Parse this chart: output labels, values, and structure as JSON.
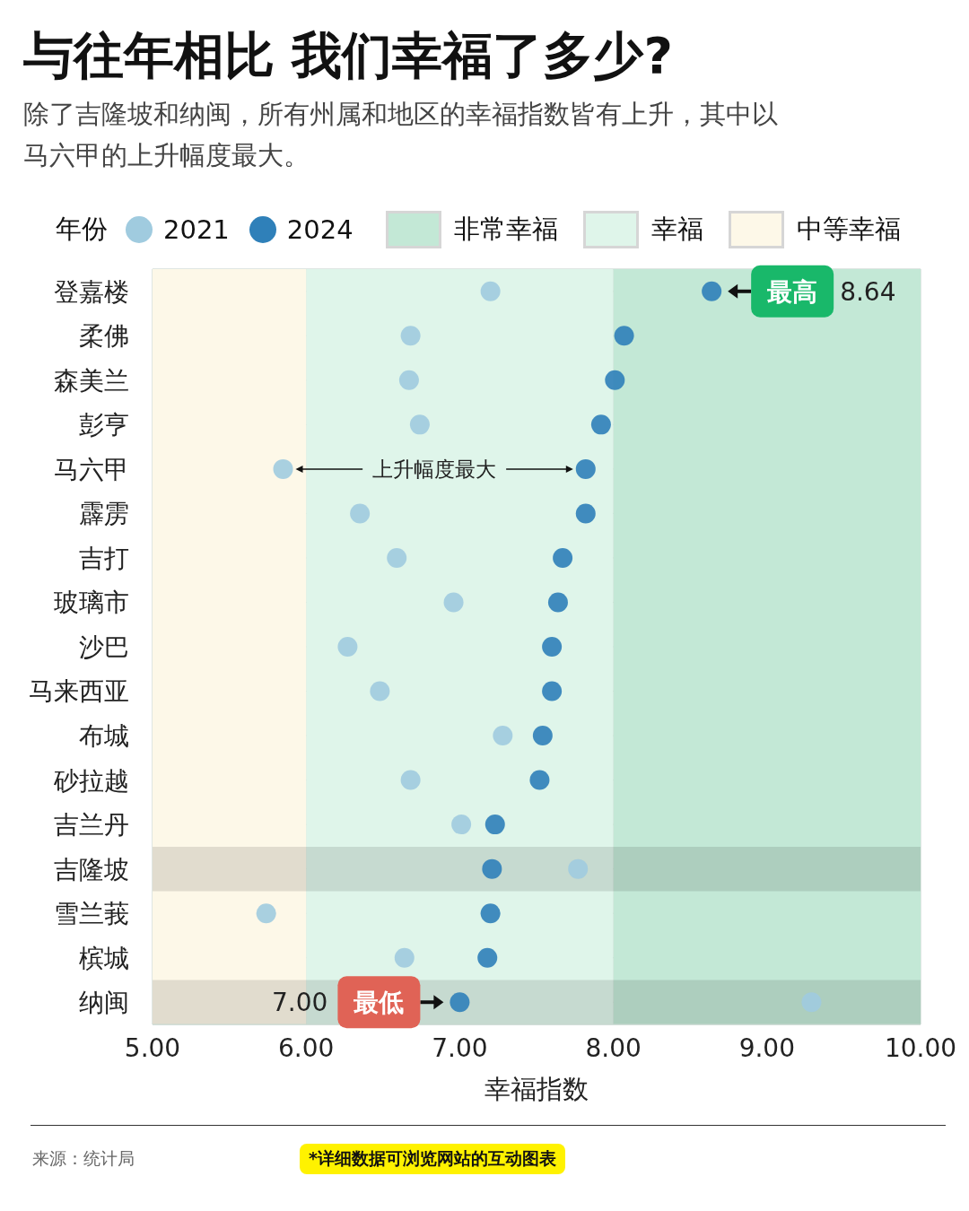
{
  "chart_data": {
    "type": "scatter",
    "title": "与往年相比 我们幸福了多少?",
    "subtitle": "除了吉隆坡和纳闽，所有州属和地区的幸福指数皆有上升，其中以马六甲的上升幅度最大。",
    "xlabel": "幸福指数",
    "legend_title": "年份",
    "categories": [
      "登嘉楼",
      "柔佛",
      "森美兰",
      "彭亨",
      "马六甲",
      "霹雳",
      "吉打",
      "玻璃市",
      "沙巴",
      "马来西亚",
      "布城",
      "砂拉越",
      "吉兰丹",
      "吉隆坡",
      "雪兰莪",
      "槟城",
      "纳闽"
    ],
    "series": [
      {
        "name": "2021",
        "color": "#a0cbdf",
        "values": [
          7.2,
          6.68,
          6.67,
          6.74,
          5.85,
          6.35,
          6.59,
          6.96,
          6.27,
          6.48,
          7.28,
          6.68,
          7.01,
          7.77,
          5.74,
          6.64,
          9.29
        ]
      },
      {
        "name": "2024",
        "color": "#2f80b9",
        "values": [
          8.64,
          8.07,
          8.01,
          7.92,
          7.82,
          7.82,
          7.67,
          7.64,
          7.6,
          7.6,
          7.54,
          7.52,
          7.23,
          7.21,
          7.2,
          7.18,
          7.0
        ]
      }
    ],
    "xlim": [
      5,
      10
    ],
    "xticks": [
      {
        "value": 5,
        "label": "5.00"
      },
      {
        "value": 6,
        "label": "6.00"
      },
      {
        "value": 7,
        "label": "7.00"
      },
      {
        "value": 8,
        "label": "8.00"
      },
      {
        "value": 9,
        "label": "9.00"
      },
      {
        "value": 10,
        "label": "10.00"
      }
    ],
    "bands": [
      {
        "axis": "x",
        "from": 8,
        "to": 10,
        "label": "非常幸福",
        "color": "#c3e8d6"
      },
      {
        "axis": "x",
        "from": 6,
        "to": 8,
        "label": "幸福",
        "color": "#dff5ea"
      },
      {
        "axis": "x",
        "from": 5,
        "to": 6,
        "label": "中等幸福",
        "color": "#fdf8e8"
      },
      {
        "axis": "y",
        "from": "吉隆坡",
        "to": "吉隆坡",
        "color": "#e3e3e3"
      },
      {
        "axis": "y",
        "from": "纳闽",
        "to": "纳闽",
        "color": "#e3e3e3"
      }
    ],
    "annotations": [
      {
        "text": "最高",
        "x": 8.64,
        "y": "登嘉楼"
      },
      {
        "text": "最低",
        "x": 7.0,
        "y": "纳闽"
      },
      "8.64",
      "7.00",
      "上升幅度最大",
      "来源：统计局",
      "*详细数据可浏览网站的互动图表"
    ],
    "orientation": "horizontal",
    "marker": "circle",
    "grid": true,
    "legend": "top"
  }
}
